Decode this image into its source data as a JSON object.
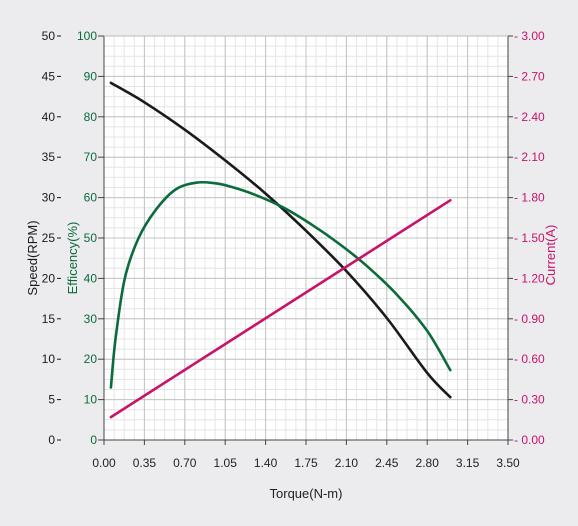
{
  "chart_data": {
    "type": "line",
    "xlabel": "Torque(N-m)",
    "x_ticks": [
      "0.00",
      "0.35",
      "0.70",
      "1.05",
      "1.40",
      "1.75",
      "2.10",
      "2.45",
      "2.80",
      "3.15",
      "3.50"
    ],
    "xlim": [
      0,
      3.5
    ],
    "axes": {
      "speed": {
        "label": "Speed(RPM)",
        "ylim": [
          0,
          50
        ],
        "ticks": [
          "0",
          "5",
          "10",
          "15",
          "20",
          "25",
          "30",
          "35",
          "40",
          "45",
          "50"
        ],
        "color": "#1a1a1a"
      },
      "efficiency": {
        "label": "Efficency(%)",
        "ylim": [
          0,
          100
        ],
        "ticks": [
          "0",
          "10",
          "20",
          "30",
          "40",
          "50",
          "60",
          "70",
          "80",
          "90",
          "100"
        ],
        "color": "#0b6b3a"
      },
      "current": {
        "label": "Current(A)",
        "ylim": [
          0,
          3.0
        ],
        "ticks": [
          "0.00",
          "0.30",
          "0.60",
          "0.90",
          "1.20",
          "1.50",
          "1.80",
          "2.10",
          "2.40",
          "2.70",
          "3.00"
        ],
        "color": "#c8136a"
      }
    },
    "grid": true,
    "series": [
      {
        "axis": "speed",
        "color": "#1a1a1a",
        "x": [
          0.06,
          0.35,
          0.7,
          1.05,
          1.4,
          1.75,
          2.1,
          2.45,
          2.8,
          3.0
        ],
        "values": [
          44.2,
          41.8,
          38.4,
          34.6,
          30.5,
          25.9,
          20.9,
          15.1,
          8.3,
          5.3
        ]
      },
      {
        "axis": "efficiency",
        "color": "#0b6b3a",
        "x": [
          0.06,
          0.1,
          0.18,
          0.3,
          0.45,
          0.62,
          0.8,
          0.95,
          1.1,
          1.3,
          1.55,
          1.8,
          2.05,
          2.3,
          2.55,
          2.8,
          3.0
        ],
        "values": [
          13,
          25,
          40,
          50,
          57,
          62,
          63.7,
          63.6,
          62.7,
          60.8,
          57.6,
          53.3,
          48.3,
          42.5,
          35.6,
          27.0,
          17.3
        ]
      },
      {
        "axis": "current",
        "color": "#c8136a",
        "x": [
          0.06,
          3.0
        ],
        "values": [
          0.17,
          1.78
        ]
      }
    ]
  }
}
